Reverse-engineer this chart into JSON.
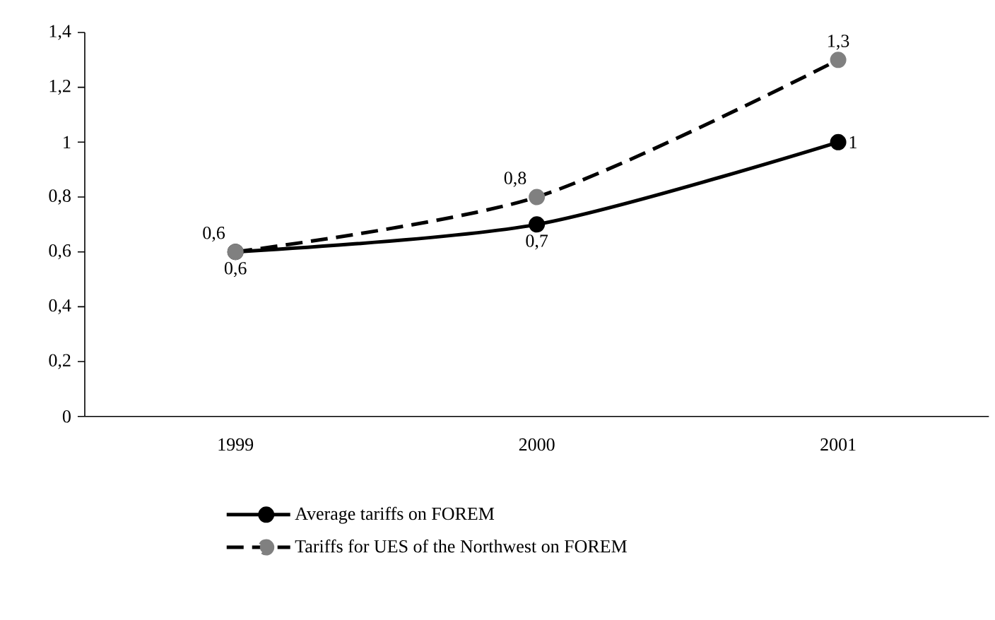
{
  "chart_data": {
    "type": "line",
    "categories": [
      "1999",
      "2000",
      "2001"
    ],
    "series": [
      {
        "name": "Average tariffs on FOREM",
        "color": "#000000",
        "values": [
          0.6,
          0.7,
          1
        ],
        "line_style": "solid"
      },
      {
        "name": "Tariffs for UES of the Northwest on FOREM",
        "color": "#808080",
        "values": [
          0.6,
          0.8,
          1.3
        ],
        "line_style": "dashed"
      }
    ],
    "ylim": [
      0,
      1.4
    ],
    "yticks": [
      0,
      {
        "value": 0.2,
        "label": "0,2"
      },
      {
        "value": 0.4,
        "label": "0,4"
      },
      {
        "value": 0.6,
        "label": "0,6"
      },
      {
        "value": 0.8,
        "label": "0,8"
      },
      1,
      {
        "value": 1.2,
        "label": "1,2"
      },
      {
        "value": 1.4,
        "label": "1,4"
      }
    ],
    "value_labels": [
      [
        "0,6",
        "0,7",
        "1"
      ],
      [
        "0,6",
        "0,8",
        "1,3"
      ]
    ],
    "marker": "circle",
    "grid": false,
    "legend": "bottom"
  }
}
